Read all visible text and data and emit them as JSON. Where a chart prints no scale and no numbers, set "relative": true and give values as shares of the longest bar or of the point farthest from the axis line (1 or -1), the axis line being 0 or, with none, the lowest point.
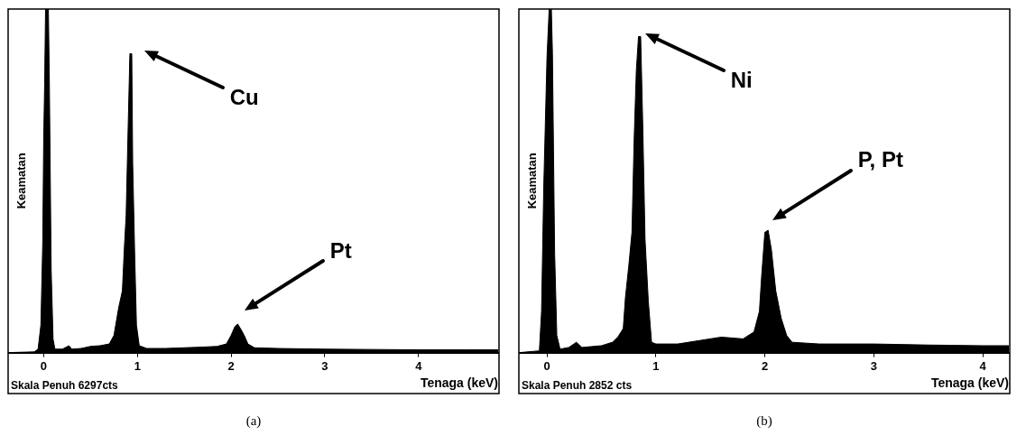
{
  "chart_data": [
    {
      "type": "area",
      "title": "(a)",
      "xlabel": "Tenaga (keV)",
      "ylabel": "Keamatan",
      "relative": true,
      "color": "#000000",
      "xlim": [
        -0.37,
        4.85
      ],
      "xticks": [
        0,
        1,
        2,
        3,
        4
      ],
      "x": [
        -0.37,
        -0.1,
        -0.06,
        -0.03,
        -0.01,
        0.0,
        0.01,
        0.02,
        0.05,
        0.06,
        0.08,
        0.1,
        0.12,
        0.2,
        0.27,
        0.3,
        0.4,
        0.5,
        0.6,
        0.7,
        0.75,
        0.8,
        0.84,
        0.86,
        0.88,
        0.9,
        0.92,
        0.94,
        0.95,
        0.97,
        0.99,
        1.02,
        1.1,
        1.3,
        1.5,
        1.7,
        1.85,
        1.95,
        2.0,
        2.04,
        2.07,
        2.1,
        2.14,
        2.18,
        2.25,
        2.5,
        3,
        3.5,
        4,
        4.5,
        4.85
      ],
      "values": [
        0,
        0.002,
        0.01,
        0.08,
        0.32,
        0.62,
        0.78,
        1.0,
        1.0,
        0.8,
        0.24,
        0.04,
        0.01,
        0.01,
        0.02,
        0.01,
        0.012,
        0.018,
        0.02,
        0.025,
        0.05,
        0.13,
        0.18,
        0.3,
        0.4,
        0.64,
        0.87,
        0.87,
        0.55,
        0.3,
        0.08,
        0.02,
        0.012,
        0.012,
        0.014,
        0.016,
        0.018,
        0.025,
        0.05,
        0.075,
        0.083,
        0.07,
        0.05,
        0.025,
        0.014,
        0.012,
        0.01,
        0.009,
        0.008,
        0.008,
        0.008
      ],
      "annotations": [
        "Cu",
        "Pt",
        "Skala Penuh 6297cts"
      ]
    },
    {
      "type": "area",
      "title": "(b)",
      "xlabel": "Tenaga (keV)",
      "ylabel": "Keamatan",
      "relative": true,
      "color": "#000000",
      "xlim": [
        -0.25,
        4.24
      ],
      "xticks": [
        0,
        1,
        2,
        3,
        4
      ],
      "x": [
        -0.25,
        -0.07,
        -0.05,
        -0.03,
        0,
        0.02,
        0.04,
        0.05,
        0.07,
        0.09,
        0.12,
        0.2,
        0.27,
        0.32,
        0.5,
        0.6,
        0.65,
        0.7,
        0.72,
        0.75,
        0.78,
        0.8,
        0.82,
        0.84,
        0.86,
        0.88,
        0.9,
        0.93,
        0.96,
        1.0,
        1.2,
        1.4,
        1.6,
        1.8,
        1.9,
        1.95,
        1.97,
        2.0,
        2.03,
        2.06,
        2.1,
        2.15,
        2.2,
        2.25,
        2.5,
        3,
        3.5,
        4,
        4.24
      ],
      "values": [
        0,
        0.005,
        0.12,
        0.48,
        0.86,
        1.0,
        1.0,
        0.87,
        0.29,
        0.05,
        0.01,
        0.015,
        0.03,
        0.015,
        0.02,
        0.03,
        0.045,
        0.07,
        0.16,
        0.25,
        0.35,
        0.62,
        0.82,
        0.92,
        0.92,
        0.65,
        0.33,
        0.15,
        0.03,
        0.025,
        0.025,
        0.035,
        0.045,
        0.04,
        0.06,
        0.12,
        0.22,
        0.35,
        0.356,
        0.3,
        0.18,
        0.1,
        0.05,
        0.03,
        0.025,
        0.025,
        0.022,
        0.02,
        0.02
      ],
      "annotations": [
        "Ni",
        "P, Pt",
        "Skala Penuh 2852 cts"
      ]
    }
  ]
}
